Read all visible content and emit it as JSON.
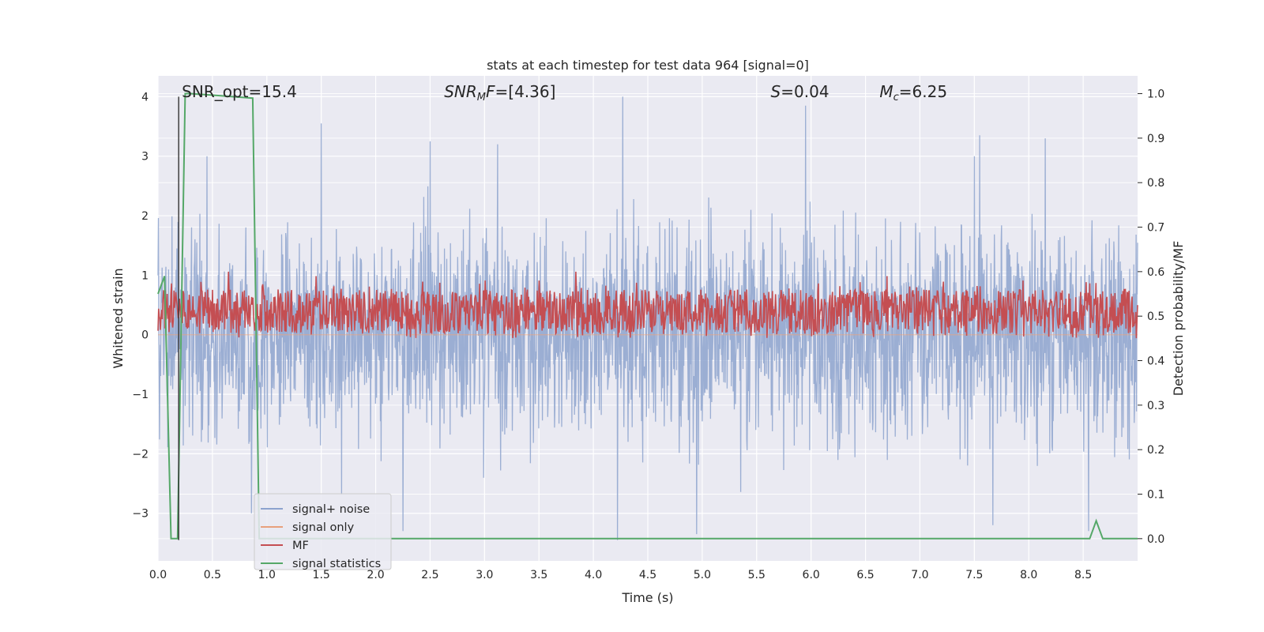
{
  "chart_data": {
    "type": "line",
    "title": "stats at each timestep for test data 964 [signal=0]",
    "xlabel": "Time (s)",
    "ylabel": "Whitened strain",
    "y2label": "Detection probability/MF",
    "xlim": [
      0.0,
      9.0
    ],
    "ylim": [
      -3.8,
      4.35
    ],
    "y2lim": [
      -0.05,
      1.04
    ],
    "xticks": [
      0.0,
      0.5,
      1.0,
      1.5,
      2.0,
      2.5,
      3.0,
      3.5,
      4.0,
      4.5,
      5.0,
      5.5,
      6.0,
      6.5,
      7.0,
      7.5,
      8.0,
      8.5
    ],
    "xtick_labels": [
      "0.0",
      "0.5",
      "1.0",
      "1.5",
      "2.0",
      "2.5",
      "3.0",
      "3.5",
      "4.0",
      "4.5",
      "5.0",
      "5.5",
      "6.0",
      "6.5",
      "7.0",
      "7.5",
      "8.0",
      "8.5"
    ],
    "yticks": [
      -3,
      -2,
      -1,
      0,
      1,
      2,
      3,
      4
    ],
    "ytick_labels": [
      "−3",
      "−2",
      "−1",
      "0",
      "1",
      "2",
      "3",
      "4"
    ],
    "y2ticks": [
      0.0,
      0.1,
      0.2,
      0.3,
      0.4,
      0.5,
      0.6,
      0.7,
      0.8,
      0.9,
      1.0
    ],
    "y2tick_labels": [
      "0.0",
      "0.1",
      "0.2",
      "0.3",
      "0.4",
      "0.5",
      "0.6",
      "0.7",
      "0.8",
      "0.9",
      "1.0"
    ],
    "grid": true,
    "legend_position": "lower-left",
    "annotations": [
      {
        "id": "snr-opt",
        "text": "SNR_opt=15.4",
        "x": 0.19
      },
      {
        "id": "snr-mf",
        "base": "SNR",
        "sub": "M",
        "tail": "F=[4.36]",
        "x": 2.6
      },
      {
        "id": "s",
        "base": "S",
        "tail": "=0.04",
        "x": 5.6
      },
      {
        "id": "mc",
        "base": "M",
        "sub": "c",
        "tail": "=6.25",
        "x": 6.6
      }
    ],
    "marker_line": {
      "x": 0.19,
      "y_range": [
        -3.45,
        4.0
      ],
      "color": "#333333"
    },
    "series": [
      {
        "name": "signal+ noise",
        "color": "#8da3ce",
        "axis": "left",
        "kind": "noise",
        "sigma": 0.85,
        "peaks": [
          [
            0.86,
            -3.0
          ],
          [
            1.5,
            3.55
          ],
          [
            2.5,
            3.25
          ],
          [
            4.27,
            4.0
          ],
          [
            4.22,
            -3.45
          ],
          [
            5.95,
            3.85
          ],
          [
            7.55,
            3.35
          ],
          [
            8.55,
            -3.3
          ],
          [
            0.45,
            3.0
          ],
          [
            3.12,
            3.2
          ],
          [
            7.5,
            3.0
          ],
          [
            7.67,
            -3.2
          ],
          [
            4.95,
            -3.35
          ],
          [
            8.15,
            3.3
          ],
          [
            2.25,
            -3.3
          ]
        ]
      },
      {
        "name": "signal only",
        "color": "#e8a07c",
        "axis": "left",
        "kind": "flat",
        "value": 0.0
      },
      {
        "name": "MF",
        "color": "#c44e52",
        "axis": "right",
        "kind": "mf",
        "base": 0.51,
        "spread": 0.05,
        "peaks": [
          [
            0.65,
            0.6
          ],
          [
            1.45,
            0.59
          ],
          [
            3.84,
            0.6
          ],
          [
            3.5,
            0.58
          ],
          [
            6.7,
            0.59
          ],
          [
            7.95,
            0.58
          ]
        ]
      },
      {
        "name": "signal statistics",
        "color": "#55a868",
        "axis": "right",
        "kind": "points",
        "x": [
          0.0,
          0.06,
          0.12,
          0.18,
          0.25,
          0.3,
          0.87,
          0.93,
          0.99,
          1.1,
          2.0,
          3.0,
          4.0,
          5.0,
          6.0,
          7.0,
          7.5,
          8.0,
          8.5,
          8.56,
          8.62,
          8.68,
          9.0
        ],
        "y": [
          0.55,
          0.59,
          0.0,
          0.0,
          1.0,
          1.0,
          0.99,
          0.0,
          0.0,
          0.0,
          0.0,
          0.0,
          0.0,
          0.0,
          0.0,
          0.0,
          0.0,
          0.0,
          0.0,
          0.0,
          0.04,
          0.0,
          0.0
        ]
      }
    ]
  }
}
